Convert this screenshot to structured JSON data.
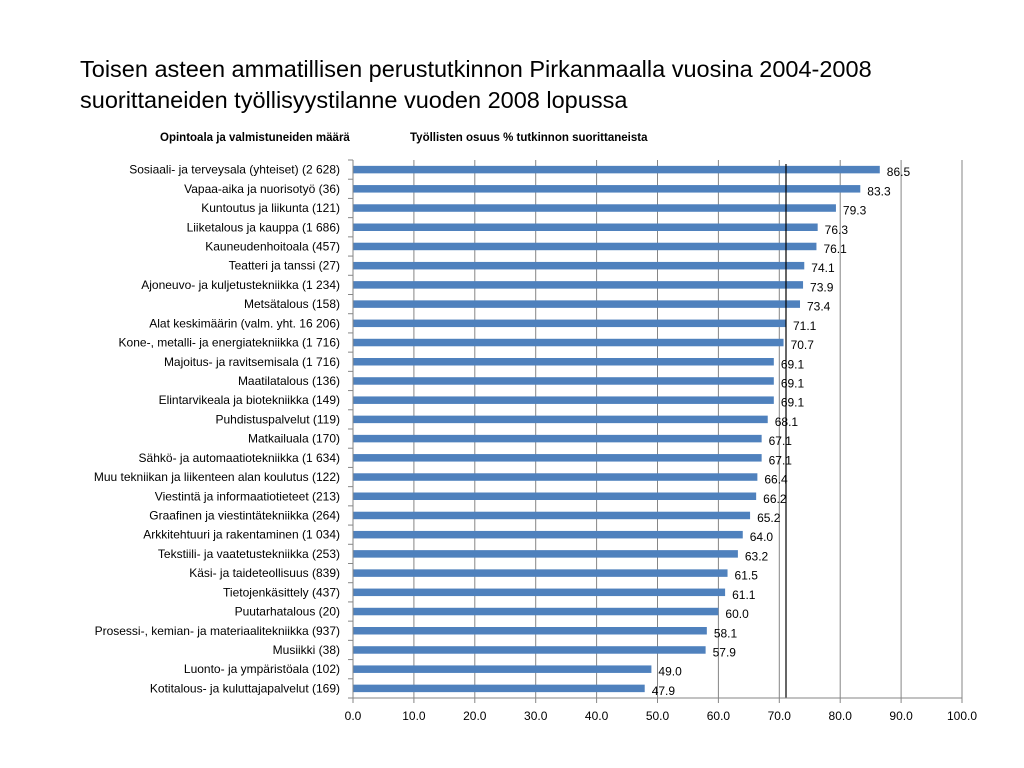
{
  "header": {
    "title_line1": "Toisen asteen ammatillisen perustutkinnon Pirkanmaalla vuosina 2004-2008",
    "title_line2": "suorittaneiden työllisyystilanne vuoden 2008 lopussa",
    "subheading_left": "Opintoala ja valmistuneiden määrä",
    "subheading_right": "Työllisten osuus % tutkinnon suorittaneista"
  },
  "chart_data": {
    "type": "bar",
    "orientation": "horizontal",
    "title": "Toisen asteen ammatillisen perustutkinnon Pirkanmaalla vuosina 2004-2008 suorittaneiden työllisyystilanne vuoden 2008 lopussa",
    "categories": [
      "Sosiaali- ja terveysala (yhteiset) (2 628)",
      "Vapaa-aika ja nuorisotyö (36)",
      "Kuntoutus ja liikunta (121)",
      "Liiketalous ja kauppa (1 686)",
      "Kauneudenhoitoala (457)",
      "Teatteri ja tanssi (27)",
      "Ajoneuvo- ja kuljetustekniikka (1 234)",
      "Metsätalous (158)",
      "Alat keskimäärin (valm. yht. 16 206)",
      "Kone-, metalli- ja energiatekniikka (1 716)",
      "Majoitus- ja ravitsemisala (1 716)",
      "Maatilatalous (136)",
      "Elintarvikeala ja biotekniikka (149)",
      "Puhdistuspalvelut (119)",
      "Matkailuala (170)",
      "Sähkö- ja automaatiotekniikka (1 634)",
      "Muu tekniikan ja liikenteen alan koulutus (122)",
      "Viestintä ja informaatiotieteet (213)",
      "Graafinen ja viestintätekniikka (264)",
      "Arkkitehtuuri ja rakentaminen (1 034)",
      "Tekstiili- ja vaatetustekniikka (253)",
      "Käsi- ja taideteollisuus (839)",
      "Tietojenkäsittely (437)",
      "Puutarhatalous (20)",
      "Prosessi-, kemian- ja materiaalitekniikka (937)",
      "Musiikki (38)",
      "Luonto- ja ympäristöala (102)",
      "Kotitalous- ja kuluttajapalvelut (169)"
    ],
    "values": [
      86.5,
      83.3,
      79.3,
      76.3,
      76.1,
      74.1,
      73.9,
      73.4,
      71.1,
      70.7,
      69.1,
      69.1,
      69.1,
      68.1,
      67.1,
      67.1,
      66.4,
      66.2,
      65.2,
      64.0,
      63.2,
      61.5,
      61.1,
      60.0,
      58.1,
      57.9,
      49.0,
      47.9
    ],
    "value_labels": [
      "86.5",
      "83.3",
      "79.3",
      "76.3",
      "76.1",
      "74.1",
      "73.9",
      "73.4",
      "71.1",
      "70.7",
      "69.1",
      "69.1",
      "69.1",
      "68.1",
      "67.1",
      "67.1",
      "66.4",
      "66.2",
      "65.2",
      "64.0",
      "63.2",
      "61.5",
      "61.1",
      "60.0",
      "58.1",
      "57.9",
      "49.0",
      "47.9"
    ],
    "xlim": [
      0,
      100
    ],
    "x_ticks": [
      0,
      10,
      20,
      30,
      40,
      50,
      60,
      70,
      80,
      90,
      100
    ],
    "x_tick_labels": [
      "0.0",
      "10.0",
      "20.0",
      "30.0",
      "40.0",
      "50.0",
      "60.0",
      "70.0",
      "80.0",
      "90.0",
      "100.0"
    ],
    "reference_line": 71.1,
    "grid": "vertical",
    "legend": "none",
    "bar_color": "#4F81BD",
    "grid_color": "#868686"
  }
}
